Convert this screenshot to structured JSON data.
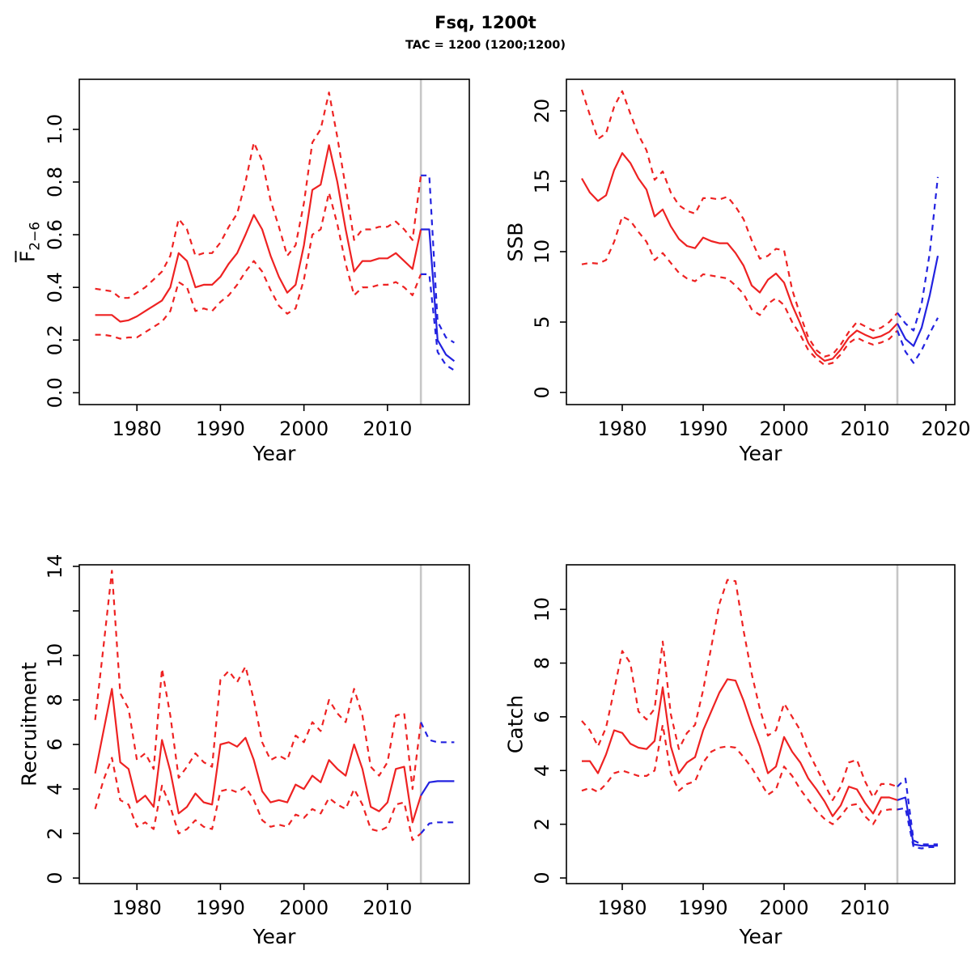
{
  "header": {
    "title": "Fsq, 1200t",
    "subtitle": "TAC = 1200 (1200;1200)"
  },
  "colors": {
    "history": "#ee2222",
    "forecast": "#2222e0",
    "divider": "#c6c6c6",
    "axis": "#000000",
    "background": "#ffffff"
  },
  "divider_year": 2014,
  "chart_data": [
    {
      "id": "fbar",
      "type": "line",
      "title": "",
      "xlabel": "Year",
      "ylabel": "F2−6",
      "ylabel_main": "F",
      "ylabel_sub": "2−6",
      "x_domain": [
        1973.1,
        2019.8
      ],
      "y_domain": [
        -0.045,
        1.19
      ],
      "x_ticks": [
        1980,
        1990,
        2000,
        2010
      ],
      "x_tick_labels": [
        "1980",
        "1990",
        "2000",
        "2010"
      ],
      "y_ticks": [
        0.0,
        0.2,
        0.4,
        0.6,
        0.8,
        1.0
      ],
      "y_tick_labels": [
        "0.0",
        "0.2",
        "0.4",
        "0.6",
        "0.8",
        "1.0"
      ],
      "grid": false,
      "legend": "none",
      "series": [
        {
          "name": "upper-ci",
          "role": "history",
          "dash": true,
          "x_from": 1975,
          "y": [
            0.395,
            0.39,
            0.385,
            0.36,
            0.36,
            0.38,
            0.4,
            0.43,
            0.46,
            0.52,
            0.66,
            0.62,
            0.52,
            0.53,
            0.53,
            0.57,
            0.63,
            0.68,
            0.8,
            0.95,
            0.88,
            0.73,
            0.63,
            0.52,
            0.56,
            0.72,
            0.95,
            1.0,
            1.14,
            0.97,
            0.78,
            0.58,
            0.62,
            0.62,
            0.63,
            0.63,
            0.65,
            0.62,
            0.58,
            0.825
          ]
        },
        {
          "name": "lower-ci",
          "role": "history",
          "dash": true,
          "x_from": 1975,
          "y": [
            0.22,
            0.22,
            0.215,
            0.205,
            0.21,
            0.21,
            0.23,
            0.25,
            0.27,
            0.31,
            0.42,
            0.4,
            0.31,
            0.32,
            0.31,
            0.345,
            0.37,
            0.41,
            0.46,
            0.5,
            0.46,
            0.39,
            0.33,
            0.3,
            0.32,
            0.43,
            0.6,
            0.62,
            0.76,
            0.64,
            0.49,
            0.37,
            0.4,
            0.4,
            0.41,
            0.41,
            0.42,
            0.4,
            0.37,
            0.45
          ]
        },
        {
          "name": "median",
          "role": "history",
          "dash": false,
          "x_from": 1975,
          "y": [
            0.295,
            0.295,
            0.295,
            0.27,
            0.275,
            0.29,
            0.31,
            0.33,
            0.35,
            0.4,
            0.53,
            0.5,
            0.4,
            0.41,
            0.41,
            0.44,
            0.49,
            0.53,
            0.6,
            0.675,
            0.62,
            0.52,
            0.44,
            0.38,
            0.41,
            0.56,
            0.77,
            0.79,
            0.94,
            0.8,
            0.62,
            0.46,
            0.5,
            0.5,
            0.51,
            0.51,
            0.53,
            0.5,
            0.47,
            0.62
          ]
        },
        {
          "name": "forecast-upper-ci",
          "role": "forecast",
          "dash": true,
          "x_from": 2014,
          "y": [
            0.825,
            0.825,
            0.27,
            0.21,
            0.19
          ]
        },
        {
          "name": "forecast-lower-ci",
          "role": "forecast",
          "dash": true,
          "x_from": 2014,
          "y": [
            0.45,
            0.45,
            0.155,
            0.105,
            0.085
          ]
        },
        {
          "name": "forecast-median",
          "role": "forecast",
          "dash": false,
          "x_from": 2014,
          "y": [
            0.62,
            0.62,
            0.2,
            0.145,
            0.12
          ]
        }
      ]
    },
    {
      "id": "ssb",
      "type": "line",
      "title": "",
      "xlabel": "Year",
      "ylabel": "SSB",
      "ylabel_main": "SSB",
      "ylabel_sub": "",
      "x_domain": [
        1973.1,
        2021.1
      ],
      "y_domain": [
        -0.86,
        22.24
      ],
      "x_ticks": [
        1980,
        1990,
        2000,
        2010,
        2020
      ],
      "x_tick_labels": [
        "1980",
        "1990",
        "2000",
        "2010",
        "2020"
      ],
      "y_ticks": [
        0,
        5,
        10,
        15,
        20
      ],
      "y_tick_labels": [
        "0",
        "5",
        "10",
        "15",
        "20"
      ],
      "grid": false,
      "legend": "none",
      "series": [
        {
          "name": "upper-ci",
          "role": "history",
          "dash": true,
          "x_from": 1975,
          "y": [
            21.5,
            19.7,
            18.0,
            18.4,
            20.3,
            21.4,
            19.8,
            18.3,
            17.2,
            15.1,
            15.7,
            14.2,
            13.3,
            12.9,
            12.7,
            13.8,
            13.8,
            13.7,
            13.9,
            13.2,
            12.3,
            10.8,
            9.5,
            9.7,
            10.2,
            10.1,
            7.3,
            5.5,
            3.9,
            3.0,
            2.55,
            2.7,
            3.4,
            4.3,
            5.0,
            4.7,
            4.4,
            4.6,
            5.0,
            5.65
          ]
        },
        {
          "name": "lower-ci",
          "role": "history",
          "dash": true,
          "x_from": 1975,
          "y": [
            9.1,
            9.2,
            9.15,
            9.4,
            10.7,
            12.5,
            12.2,
            11.4,
            10.7,
            9.4,
            9.9,
            9.2,
            8.5,
            8.1,
            7.9,
            8.4,
            8.3,
            8.2,
            8.1,
            7.6,
            7.0,
            5.9,
            5.5,
            6.3,
            6.7,
            6.2,
            5.0,
            4.1,
            3.0,
            2.4,
            1.95,
            2.1,
            2.7,
            3.5,
            3.9,
            3.6,
            3.4,
            3.55,
            3.8,
            4.4
          ]
        },
        {
          "name": "median",
          "role": "history",
          "dash": false,
          "x_from": 1975,
          "y": [
            15.2,
            14.2,
            13.6,
            14.0,
            15.8,
            17.0,
            16.3,
            15.2,
            14.4,
            12.5,
            13.0,
            11.8,
            10.9,
            10.4,
            10.25,
            11.0,
            10.75,
            10.6,
            10.6,
            9.9,
            9.0,
            7.6,
            7.1,
            8.0,
            8.45,
            7.8,
            6.2,
            4.9,
            3.5,
            2.7,
            2.25,
            2.4,
            3.05,
            3.9,
            4.4,
            4.1,
            3.85,
            4.0,
            4.3,
            4.9
          ]
        },
        {
          "name": "forecast-upper-ci",
          "role": "forecast",
          "dash": true,
          "x_from": 2014,
          "y": [
            5.65,
            4.9,
            4.4,
            6.3,
            9.9,
            15.3
          ]
        },
        {
          "name": "forecast-lower-ci",
          "role": "forecast",
          "dash": true,
          "x_from": 2014,
          "y": [
            4.4,
            2.9,
            2.1,
            3.0,
            4.2,
            5.3
          ]
        },
        {
          "name": "forecast-median",
          "role": "forecast",
          "dash": false,
          "x_from": 2014,
          "y": [
            4.9,
            3.8,
            3.3,
            4.6,
            6.9,
            9.7
          ]
        }
      ]
    },
    {
      "id": "recruitment",
      "type": "line",
      "title": "",
      "xlabel": "Year",
      "ylabel": "Recruitment",
      "ylabel_main": "Recruitment",
      "ylabel_sub": "",
      "x_domain": [
        1973.1,
        2019.8
      ],
      "y_domain": [
        -0.25,
        14.07
      ],
      "x_ticks": [
        1980,
        1990,
        2000,
        2010
      ],
      "x_tick_labels": [
        "1980",
        "1990",
        "2000",
        "2010"
      ],
      "y_ticks": [
        0,
        2,
        4,
        6,
        8,
        10,
        12,
        14
      ],
      "y_tick_labels": [
        "0",
        "2",
        "4",
        "6",
        "8",
        "10",
        "",
        "14"
      ],
      "grid": false,
      "legend": "none",
      "series": [
        {
          "name": "upper-ci",
          "role": "history",
          "dash": true,
          "x_from": 1975,
          "y": [
            7.1,
            10.4,
            13.8,
            8.3,
            7.6,
            5.3,
            5.6,
            4.9,
            9.4,
            7.3,
            4.5,
            5.0,
            5.6,
            5.2,
            5.0,
            8.9,
            9.3,
            8.8,
            9.5,
            8.0,
            6.1,
            5.3,
            5.5,
            5.3,
            6.4,
            6.1,
            7.0,
            6.6,
            8.0,
            7.4,
            7.0,
            8.5,
            7.3,
            5.0,
            4.6,
            5.2,
            7.3,
            7.4,
            4.0,
            7.0
          ]
        },
        {
          "name": "lower-ci",
          "role": "history",
          "dash": true,
          "x_from": 1975,
          "y": [
            3.1,
            4.4,
            5.4,
            3.5,
            3.3,
            2.3,
            2.5,
            2.2,
            4.15,
            3.2,
            2.0,
            2.2,
            2.6,
            2.3,
            2.2,
            3.9,
            4.0,
            3.85,
            4.1,
            3.5,
            2.6,
            2.3,
            2.4,
            2.3,
            2.85,
            2.7,
            3.1,
            2.9,
            3.6,
            3.3,
            3.1,
            4.0,
            3.3,
            2.2,
            2.1,
            2.3,
            3.3,
            3.4,
            1.7,
            2.0
          ]
        },
        {
          "name": "median",
          "role": "history",
          "dash": false,
          "x_from": 1975,
          "y": [
            4.7,
            6.6,
            8.5,
            5.2,
            4.9,
            3.4,
            3.7,
            3.2,
            6.2,
            4.8,
            2.9,
            3.2,
            3.8,
            3.4,
            3.3,
            6.0,
            6.1,
            5.9,
            6.3,
            5.3,
            3.9,
            3.4,
            3.5,
            3.4,
            4.2,
            4.0,
            4.6,
            4.3,
            5.3,
            4.9,
            4.6,
            6.0,
            4.9,
            3.2,
            3.0,
            3.4,
            4.9,
            5.0,
            2.5,
            3.7
          ]
        },
        {
          "name": "forecast-upper-ci",
          "role": "forecast",
          "dash": true,
          "x_from": 2014,
          "y": [
            7.0,
            6.2,
            6.1,
            6.1,
            6.1
          ]
        },
        {
          "name": "forecast-lower-ci",
          "role": "forecast",
          "dash": true,
          "x_from": 2014,
          "y": [
            2.0,
            2.45,
            2.5,
            2.5,
            2.5
          ]
        },
        {
          "name": "forecast-median",
          "role": "forecast",
          "dash": false,
          "x_from": 2014,
          "y": [
            3.7,
            4.3,
            4.35,
            4.35,
            4.35
          ]
        }
      ]
    },
    {
      "id": "catch",
      "type": "line",
      "title": "",
      "xlabel": "Year",
      "ylabel": "Catch",
      "ylabel_main": "Catch",
      "ylabel_sub": "",
      "x_domain": [
        1973.1,
        2021.1
      ],
      "y_domain": [
        -0.21,
        11.66
      ],
      "x_ticks": [
        1980,
        1990,
        2000,
        2010
      ],
      "x_tick_labels": [
        "1980",
        "1990",
        "2000",
        "2010"
      ],
      "y_ticks": [
        0,
        2,
        4,
        6,
        8,
        10
      ],
      "y_tick_labels": [
        "0",
        "2",
        "4",
        "6",
        "8",
        "10"
      ],
      "grid": false,
      "legend": "none",
      "series": [
        {
          "name": "upper-ci",
          "role": "history",
          "dash": true,
          "x_from": 1975,
          "y": [
            5.85,
            5.5,
            4.9,
            5.6,
            7.0,
            8.45,
            8.0,
            6.2,
            5.9,
            6.3,
            8.8,
            6.1,
            4.8,
            5.4,
            5.7,
            7.0,
            8.6,
            10.2,
            11.1,
            11.05,
            9.2,
            7.6,
            6.3,
            5.3,
            5.5,
            6.5,
            6.0,
            5.5,
            4.7,
            4.1,
            3.5,
            2.9,
            3.4,
            4.3,
            4.4,
            3.6,
            3.0,
            3.5,
            3.5,
            3.4
          ]
        },
        {
          "name": "lower-ci",
          "role": "history",
          "dash": true,
          "x_from": 1975,
          "y": [
            3.25,
            3.35,
            3.2,
            3.5,
            3.9,
            4.0,
            3.9,
            3.8,
            3.8,
            4.0,
            5.7,
            3.9,
            3.25,
            3.5,
            3.6,
            4.3,
            4.7,
            4.85,
            4.9,
            4.85,
            4.5,
            4.1,
            3.6,
            3.1,
            3.3,
            4.15,
            3.8,
            3.3,
            2.9,
            2.5,
            2.2,
            2.0,
            2.3,
            2.7,
            2.75,
            2.3,
            2.0,
            2.5,
            2.55,
            2.55
          ]
        },
        {
          "name": "median",
          "role": "history",
          "dash": false,
          "x_from": 1975,
          "y": [
            4.35,
            4.35,
            3.9,
            4.6,
            5.5,
            5.4,
            5.0,
            4.85,
            4.8,
            5.1,
            7.1,
            4.9,
            3.9,
            4.3,
            4.5,
            5.5,
            6.2,
            6.9,
            7.4,
            7.35,
            6.6,
            5.7,
            4.9,
            3.9,
            4.15,
            5.25,
            4.7,
            4.3,
            3.7,
            3.3,
            2.85,
            2.3,
            2.7,
            3.4,
            3.3,
            2.8,
            2.4,
            3.0,
            3.0,
            2.9
          ]
        },
        {
          "name": "forecast-upper-ci",
          "role": "forecast",
          "dash": true,
          "x_from": 2014,
          "y": [
            3.4,
            3.7,
            1.4,
            1.25,
            1.25,
            1.25
          ]
        },
        {
          "name": "forecast-lower-ci",
          "role": "forecast",
          "dash": true,
          "x_from": 2014,
          "y": [
            2.55,
            2.6,
            1.15,
            1.1,
            1.15,
            1.15
          ]
        },
        {
          "name": "forecast-median",
          "role": "forecast",
          "dash": false,
          "x_from": 2014,
          "y": [
            2.9,
            3.0,
            1.25,
            1.2,
            1.2,
            1.2
          ]
        }
      ]
    }
  ]
}
